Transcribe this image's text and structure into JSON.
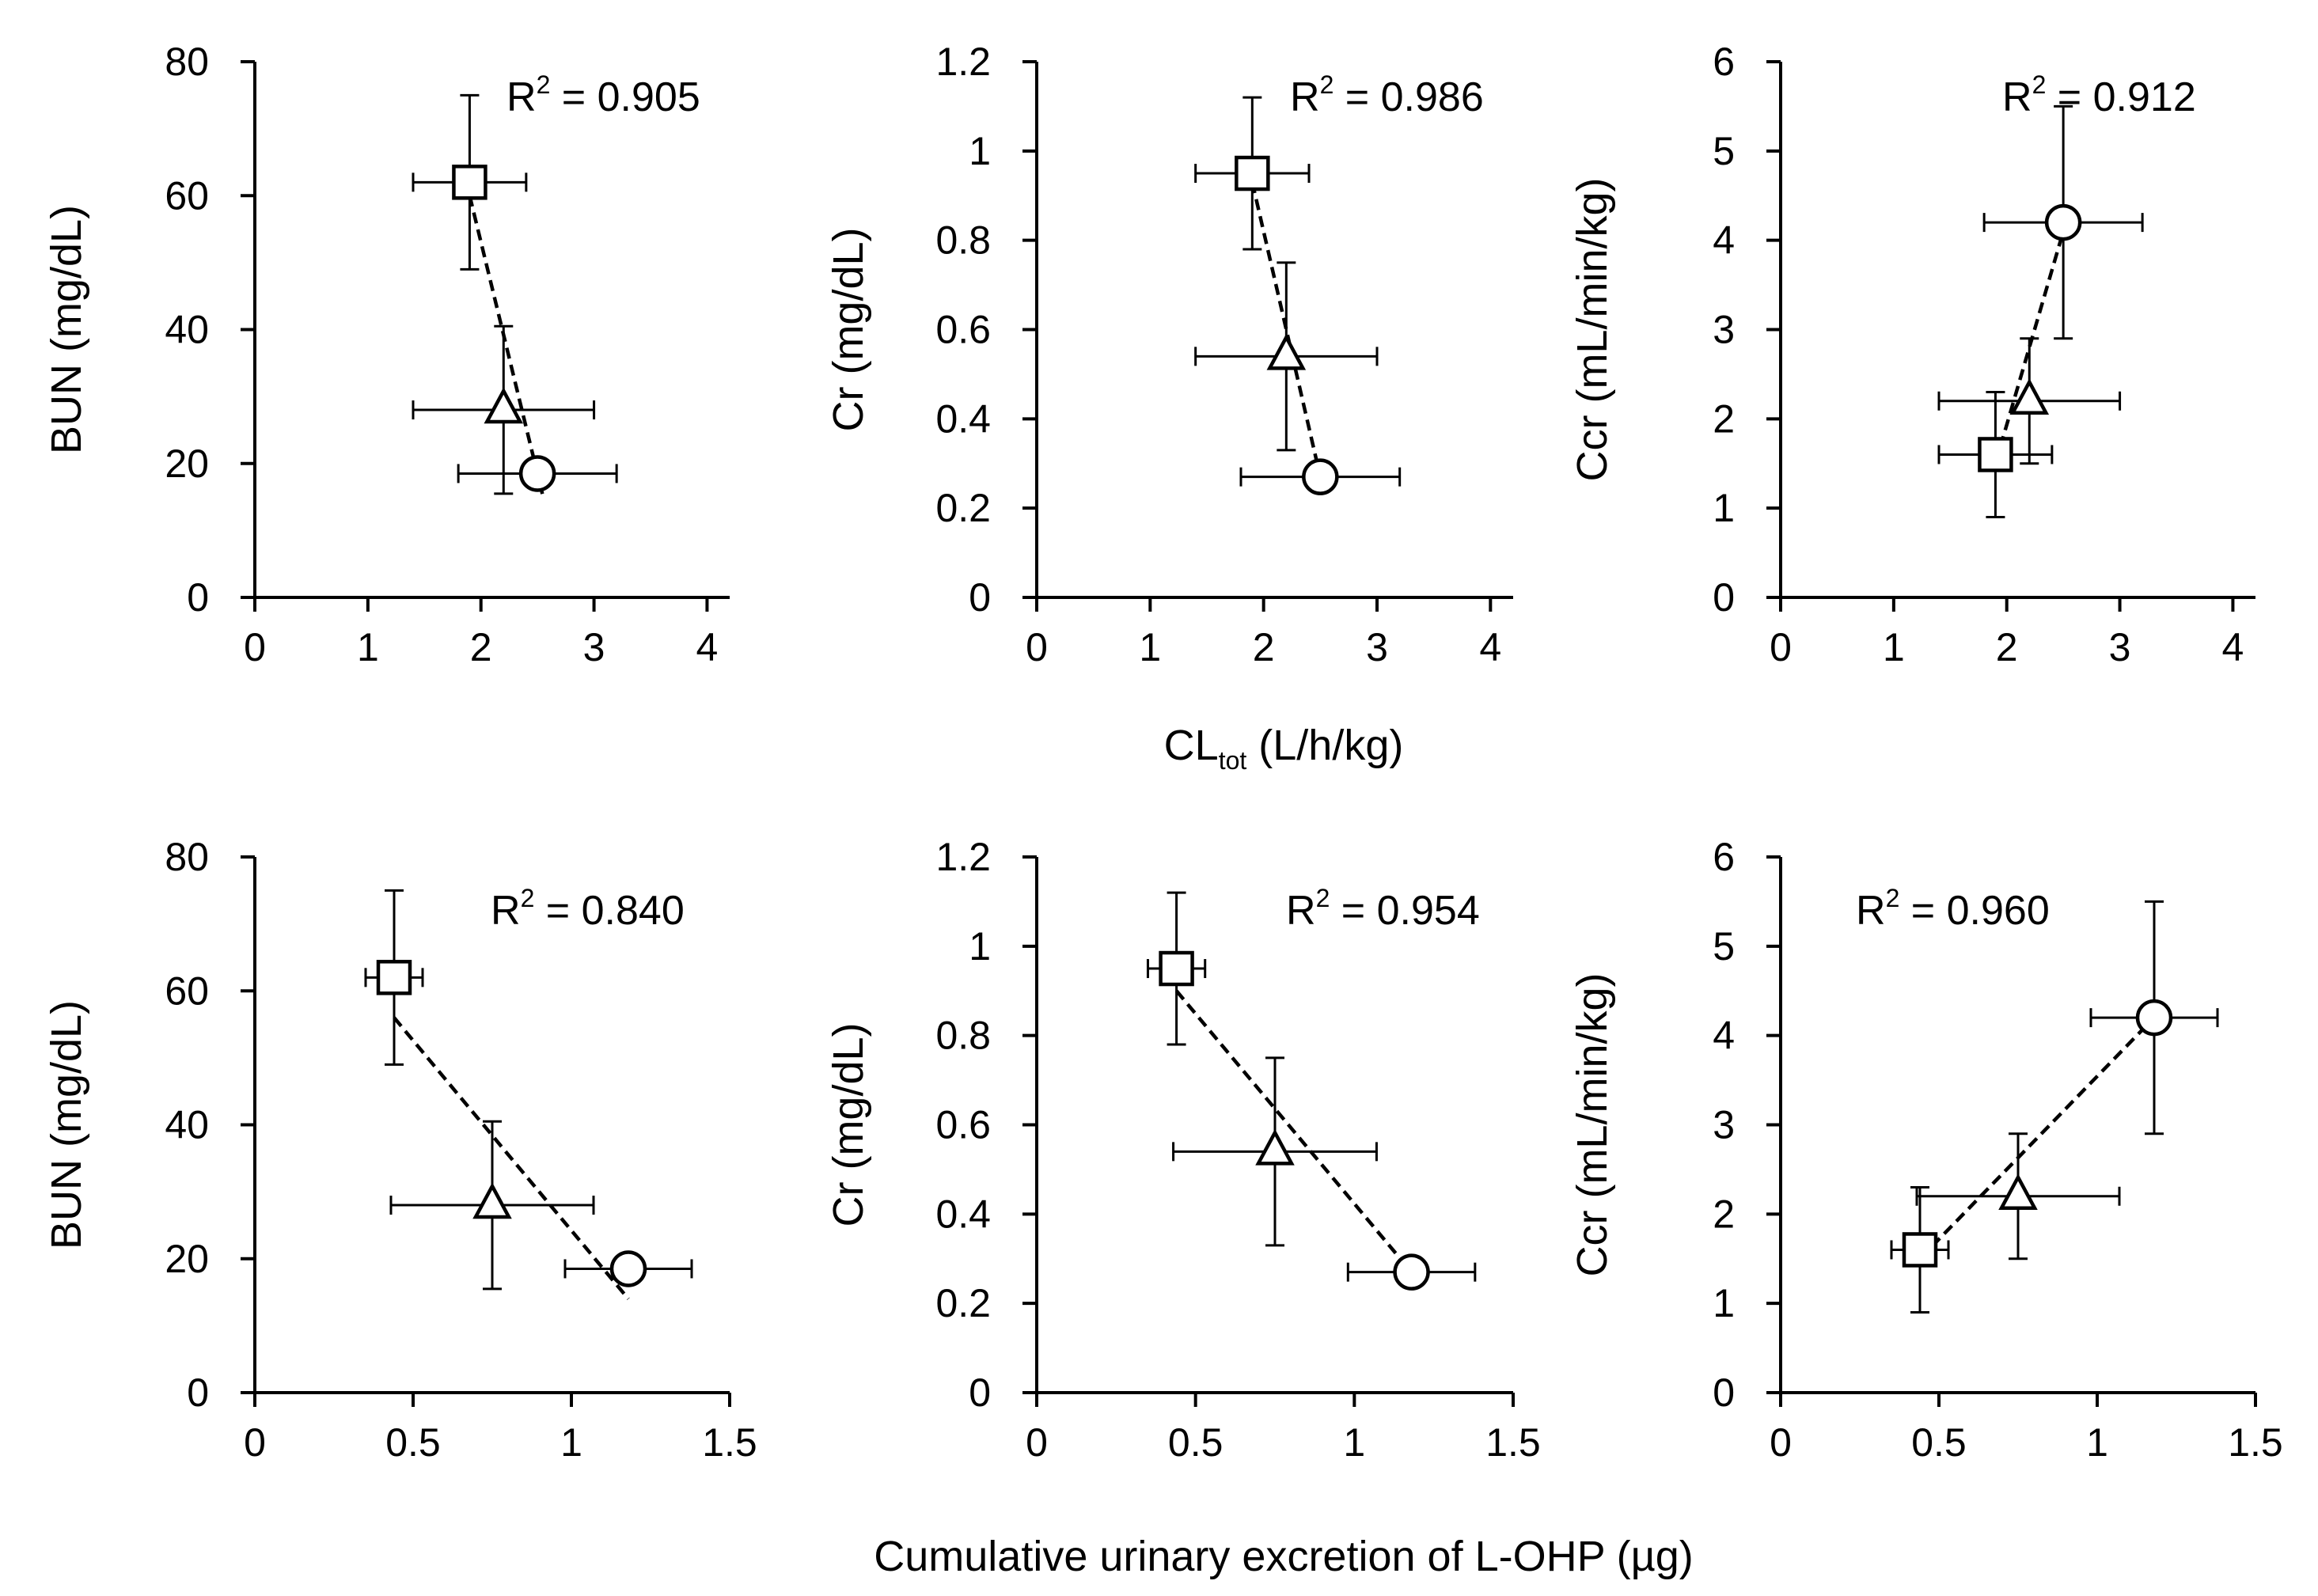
{
  "xlabels": {
    "top_main": "CL",
    "top_sub": "tot",
    "top_unit": " (L/h/kg)",
    "bottom": "Cumulative urinary excretion of L-OHP (µg)"
  },
  "chart_data": [
    {
      "type": "scatter",
      "id": "top-bun",
      "ylabel": "BUN (mg/dL)",
      "r2_label": "R",
      "r2_sup": "2",
      "r2_value": " = 0.905",
      "xlim": [
        0,
        4.2
      ],
      "ylim": [
        0,
        80
      ],
      "xticks": [
        0,
        1,
        2,
        3,
        4
      ],
      "yticks": [
        0,
        20,
        40,
        60,
        80
      ],
      "xtick_labels": [
        "0",
        "1",
        "2",
        "3",
        "4"
      ],
      "ytick_labels": [
        "0",
        "20",
        "40",
        "60",
        "80"
      ],
      "points": [
        {
          "marker": "square",
          "x": 1.9,
          "y": 62,
          "xerr": 0.5,
          "yerr": 13
        },
        {
          "marker": "triangle",
          "x": 2.2,
          "y": 28,
          "xerr": 0.8,
          "yerr": 12.5
        },
        {
          "marker": "circle",
          "x": 2.5,
          "y": 18.5,
          "xerr": 0.7,
          "yerr": 0
        }
      ],
      "trend": [
        [
          1.9,
          60
        ],
        [
          2.55,
          15
        ]
      ]
    },
    {
      "type": "scatter",
      "id": "top-cr",
      "ylabel": "Cr (mg/dL)",
      "r2_label": "R",
      "r2_sup": "2",
      "r2_value": " = 0.986",
      "xlim": [
        0,
        4.2
      ],
      "ylim": [
        0,
        1.2
      ],
      "xticks": [
        0,
        1,
        2,
        3,
        4
      ],
      "yticks": [
        0,
        0.2,
        0.4,
        0.6,
        0.8,
        1,
        1.2
      ],
      "xtick_labels": [
        "0",
        "1",
        "2",
        "3",
        "4"
      ],
      "ytick_labels": [
        "0",
        "0.2",
        "0.4",
        "0.6",
        "0.8",
        "1",
        "1.2"
      ],
      "points": [
        {
          "marker": "square",
          "x": 1.9,
          "y": 0.95,
          "xerr": 0.5,
          "yerr": 0.17
        },
        {
          "marker": "triangle",
          "x": 2.2,
          "y": 0.54,
          "xerr": 0.8,
          "yerr": 0.21
        },
        {
          "marker": "circle",
          "x": 2.5,
          "y": 0.27,
          "xerr": 0.7,
          "yerr": 0
        }
      ],
      "trend": [
        [
          1.9,
          0.93
        ],
        [
          2.5,
          0.27
        ]
      ]
    },
    {
      "type": "scatter",
      "id": "top-ccr",
      "ylabel": "Ccr (mL/min/kg)",
      "r2_label": "R",
      "r2_sup": "2",
      "r2_value": " = 0.912",
      "xlim": [
        0,
        4.2
      ],
      "ylim": [
        0,
        6
      ],
      "xticks": [
        0,
        1,
        2,
        3,
        4
      ],
      "yticks": [
        0,
        1,
        2,
        3,
        4,
        5,
        6
      ],
      "xtick_labels": [
        "0",
        "1",
        "2",
        "3",
        "4"
      ],
      "ytick_labels": [
        "0",
        "1",
        "2",
        "3",
        "4",
        "5",
        "6"
      ],
      "points": [
        {
          "marker": "square",
          "x": 1.9,
          "y": 1.6,
          "xerr": 0.5,
          "yerr": 0.7
        },
        {
          "marker": "triangle",
          "x": 2.2,
          "y": 2.2,
          "xerr": 0.8,
          "yerr": 0.7
        },
        {
          "marker": "circle",
          "x": 2.5,
          "y": 4.2,
          "xerr": 0.7,
          "yerr": 1.3
        }
      ],
      "trend": [
        [
          1.9,
          1.5
        ],
        [
          2.5,
          4.1
        ]
      ]
    },
    {
      "type": "scatter",
      "id": "bottom-bun",
      "ylabel": "BUN (mg/dL)",
      "r2_label": "R",
      "r2_sup": "2",
      "r2_value": " = 0.840",
      "xlim": [
        0,
        1.5
      ],
      "ylim": [
        0,
        80
      ],
      "xticks": [
        0,
        0.5,
        1,
        1.5
      ],
      "yticks": [
        0,
        20,
        40,
        60,
        80
      ],
      "xtick_labels": [
        "0",
        "0.5",
        "1",
        "1.5"
      ],
      "ytick_labels": [
        "0",
        "20",
        "40",
        "60",
        "80"
      ],
      "points": [
        {
          "marker": "square",
          "x": 0.44,
          "y": 62,
          "xerr": 0.09,
          "yerr": 13
        },
        {
          "marker": "triangle",
          "x": 0.75,
          "y": 28,
          "xerr": 0.32,
          "yerr": 12.5
        },
        {
          "marker": "circle",
          "x": 1.18,
          "y": 18.5,
          "xerr": 0.2,
          "yerr": 0
        }
      ],
      "trend": [
        [
          0.44,
          56
        ],
        [
          1.18,
          14
        ]
      ]
    },
    {
      "type": "scatter",
      "id": "bottom-cr",
      "ylabel": "Cr (mg/dL)",
      "r2_label": "R",
      "r2_sup": "2",
      "r2_value": " = 0.954",
      "xlim": [
        0,
        1.5
      ],
      "ylim": [
        0,
        1.2
      ],
      "xticks": [
        0,
        0.5,
        1,
        1.5
      ],
      "yticks": [
        0,
        0.2,
        0.4,
        0.6,
        0.8,
        1,
        1.2
      ],
      "xtick_labels": [
        "0",
        "0.5",
        "1",
        "1.5"
      ],
      "ytick_labels": [
        "0",
        "0.2",
        "0.4",
        "0.6",
        "0.8",
        "1",
        "1.2"
      ],
      "points": [
        {
          "marker": "square",
          "x": 0.44,
          "y": 0.95,
          "xerr": 0.09,
          "yerr": 0.17
        },
        {
          "marker": "triangle",
          "x": 0.75,
          "y": 0.54,
          "xerr": 0.32,
          "yerr": 0.21
        },
        {
          "marker": "circle",
          "x": 1.18,
          "y": 0.27,
          "xerr": 0.2,
          "yerr": 0
        }
      ],
      "trend": [
        [
          0.44,
          0.9
        ],
        [
          1.18,
          0.27
        ]
      ]
    },
    {
      "type": "scatter",
      "id": "bottom-ccr",
      "ylabel": "Ccr (mL/min/kg)",
      "r2_label": "R",
      "r2_sup": "2",
      "r2_value": " = 0.960",
      "xlim": [
        0,
        1.5
      ],
      "ylim": [
        0,
        6
      ],
      "xticks": [
        0,
        0.5,
        1,
        1.5
      ],
      "yticks": [
        0,
        1,
        2,
        3,
        4,
        5,
        6
      ],
      "xtick_labels": [
        "0",
        "0.5",
        "1",
        "1.5"
      ],
      "ytick_labels": [
        "0",
        "1",
        "2",
        "3",
        "4",
        "5",
        "6"
      ],
      "points": [
        {
          "marker": "square",
          "x": 0.44,
          "y": 1.6,
          "xerr": 0.09,
          "yerr": 0.7
        },
        {
          "marker": "triangle",
          "x": 0.75,
          "y": 2.2,
          "xerr": 0.32,
          "yerr": 0.7
        },
        {
          "marker": "circle",
          "x": 1.18,
          "y": 4.2,
          "xerr": 0.2,
          "yerr": 1.3
        }
      ],
      "trend": [
        [
          0.44,
          1.5
        ],
        [
          1.18,
          4.2
        ]
      ]
    }
  ]
}
